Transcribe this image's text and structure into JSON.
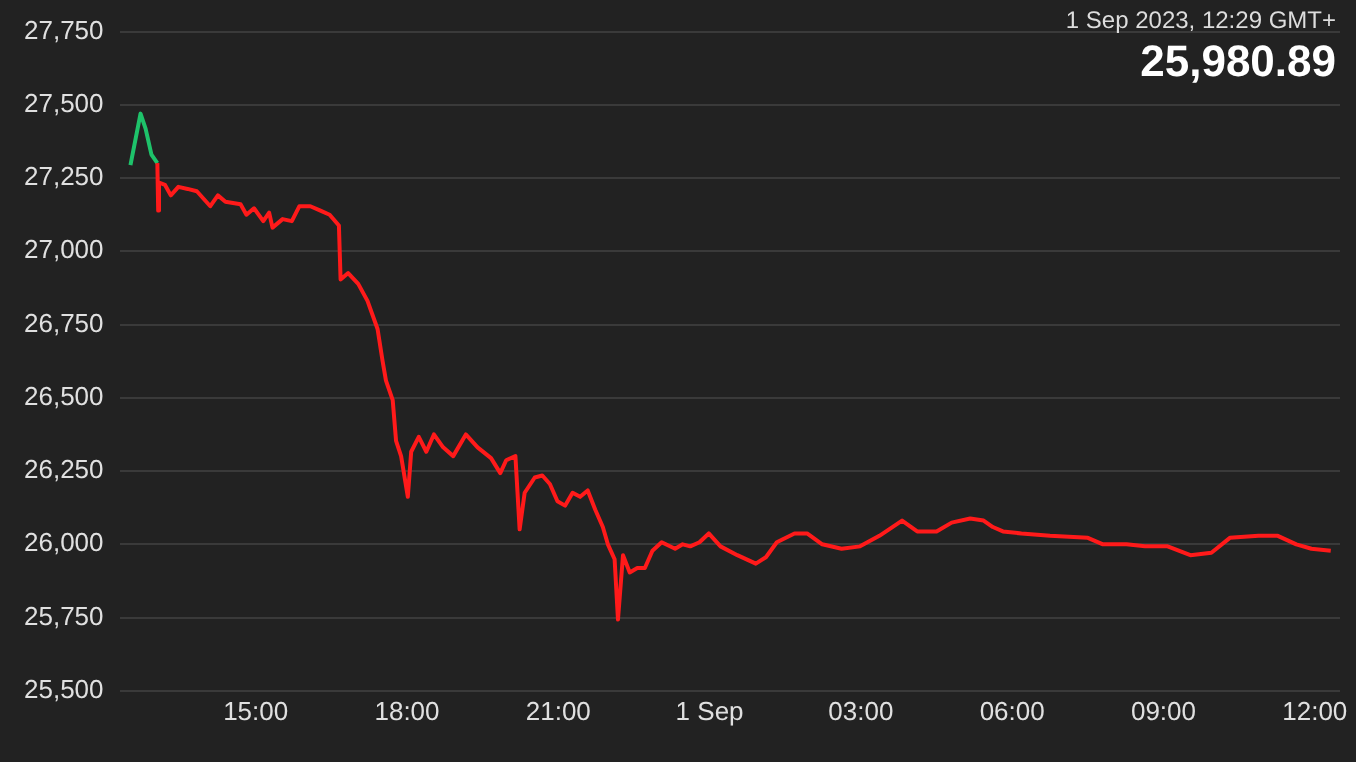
{
  "chart_data": {
    "type": "line",
    "annotations": [
      "1 Sep 2023, 12:29 GMT+",
      "25,980.89"
    ],
    "series": [
      {
        "color": "#ff1a1a",
        "x": [
          "2023-08-31T13:03",
          "2023-08-31T13:04",
          "2023-08-31T13:05",
          "2023-08-31T13:12",
          "2023-08-31T13:19",
          "2023-08-31T13:28",
          "2023-08-31T13:39",
          "2023-08-31T13:50",
          "2023-08-31T14:06",
          "2023-08-31T14:15",
          "2023-08-31T14:24",
          "2023-08-31T14:42",
          "2023-08-31T14:49",
          "2023-08-31T14:58",
          "2023-08-31T15:09",
          "2023-08-31T15:16",
          "2023-08-31T15:20",
          "2023-08-31T15:32",
          "2023-08-31T15:43",
          "2023-08-31T15:52",
          "2023-08-31T16:05",
          "2023-08-31T16:17",
          "2023-08-31T16:28",
          "2023-08-31T16:39",
          "2023-08-31T16:41",
          "2023-08-31T16:50",
          "2023-08-31T17:02",
          "2023-08-31T17:13",
          "2023-08-31T17:25",
          "2023-08-31T17:31",
          "2023-08-31T17:35",
          "2023-08-31T17:43",
          "2023-08-31T17:47",
          "2023-08-31T17:53",
          "2023-08-31T18:01",
          "2023-08-31T18:05",
          "2023-08-31T18:14",
          "2023-08-31T18:23",
          "2023-08-31T18:32",
          "2023-08-31T18:43",
          "2023-08-31T18:55",
          "2023-08-31T19:10",
          "2023-08-31T19:24",
          "2023-08-31T19:40",
          "2023-08-31T19:51",
          "2023-08-31T19:58",
          "2023-08-31T20:09",
          "2023-08-31T20:14",
          "2023-08-31T20:20",
          "2023-08-31T20:32",
          "2023-08-31T20:41",
          "2023-08-31T20:50",
          "2023-08-31T20:59",
          "2023-08-31T21:08",
          "2023-08-31T21:17",
          "2023-08-31T21:26",
          "2023-08-31T21:35",
          "2023-08-31T21:44",
          "2023-08-31T21:53",
          "2023-08-31T21:59",
          "2023-08-31T22:07",
          "2023-08-31T22:11",
          "2023-08-31T22:17",
          "2023-08-31T22:25",
          "2023-08-31T22:34",
          "2023-08-31T22:43",
          "2023-08-31T22:52",
          "2023-08-31T23:03",
          "2023-08-31T23:19",
          "2023-08-31T23:28",
          "2023-08-31T23:37",
          "2023-08-31T23:48",
          "2023-08-31T23:59",
          "2023-09-01T00:13",
          "2023-09-01T00:33",
          "2023-09-01T00:55",
          "2023-09-01T01:07",
          "2023-09-01T01:20",
          "2023-09-01T01:41",
          "2023-09-01T01:56",
          "2023-09-01T02:14",
          "2023-09-01T02:37",
          "2023-09-01T02:59",
          "2023-09-01T03:22",
          "2023-09-01T03:49",
          "2023-09-01T04:07",
          "2023-09-01T04:30",
          "2023-09-01T04:48",
          "2023-09-01T05:10",
          "2023-09-01T05:26",
          "2023-09-01T05:37",
          "2023-09-01T05:49",
          "2023-09-01T06:11",
          "2023-09-01T06:45",
          "2023-09-01T07:30",
          "2023-09-01T07:48",
          "2023-09-01T08:16",
          "2023-09-01T08:38",
          "2023-09-01T09:05",
          "2023-09-01T09:32",
          "2023-09-01T09:57",
          "2023-09-01T10:19",
          "2023-09-01T10:53",
          "2023-09-01T11:16",
          "2023-09-01T11:38",
          "2023-09-01T11:56",
          "2023-09-01T12:19"
        ],
        "values": [
          27301,
          27139,
          27235,
          27227,
          27191,
          27220,
          27213,
          27205,
          27154,
          27191,
          27169,
          27161,
          27125,
          27147,
          27103,
          27132,
          27081,
          27110,
          27103,
          27154,
          27154,
          27139,
          27125,
          27088,
          26904,
          26926,
          26889,
          26831,
          26735,
          26625,
          26559,
          26492,
          26353,
          26301,
          26162,
          26316,
          26367,
          26316,
          26375,
          26331,
          26301,
          26375,
          26331,
          26294,
          26243,
          26287,
          26301,
          26051,
          26176,
          26228,
          26235,
          26206,
          26147,
          26132,
          26176,
          26162,
          26184,
          26118,
          26059,
          26000,
          25949,
          25743,
          25963,
          25904,
          25919,
          25919,
          25978,
          26007,
          25985,
          26000,
          25993,
          26007,
          26037,
          25993,
          25963,
          25934,
          25956,
          26007,
          26037,
          26037,
          26000,
          25985,
          25993,
          26029,
          26081,
          26044,
          26044,
          26074,
          26088,
          26081,
          26059,
          26044,
          26037,
          26029,
          26022,
          26000,
          26000,
          25993,
          25993,
          25963,
          25971,
          26022,
          26029,
          26029,
          26000,
          25985,
          25978
        ]
      },
      {
        "color": "#1ec26a",
        "x": [
          "2023-08-31T12:31",
          "2023-08-31T12:43",
          "2023-08-31T12:49",
          "2023-08-31T12:56",
          "2023-08-31T13:03"
        ],
        "values": [
          27294,
          27470,
          27419,
          27330,
          27301
        ]
      }
    ],
    "xlim": [
      "2023-08-31T12:18",
      "2023-09-01T12:30"
    ],
    "xticks": [
      {
        "value": "2023-08-31T15:00",
        "label": "15:00"
      },
      {
        "value": "2023-08-31T18:00",
        "label": "18:00"
      },
      {
        "value": "2023-08-31T21:00",
        "label": "21:00"
      },
      {
        "value": "2023-09-01T00:00",
        "label": "1 Sep"
      },
      {
        "value": "2023-09-01T03:00",
        "label": "03:00"
      },
      {
        "value": "2023-09-01T06:00",
        "label": "06:00"
      },
      {
        "value": "2023-09-01T09:00",
        "label": "09:00"
      },
      {
        "value": "2023-09-01T12:00",
        "label": "12:00"
      }
    ],
    "ylim": [
      25500,
      27750
    ],
    "yticks": [
      {
        "value": 25500,
        "label": "25,500"
      },
      {
        "value": 25750,
        "label": "25,750"
      },
      {
        "value": 26000,
        "label": "26,000"
      },
      {
        "value": 26250,
        "label": "26,250"
      },
      {
        "value": 26500,
        "label": "26,500"
      },
      {
        "value": 26750,
        "label": "26,750"
      },
      {
        "value": 27000,
        "label": "27,000"
      },
      {
        "value": 27250,
        "label": "27,250"
      },
      {
        "value": 27500,
        "label": "27,500"
      },
      {
        "value": 27750,
        "label": "27,750"
      }
    ],
    "grid": "y",
    "legend": false
  }
}
